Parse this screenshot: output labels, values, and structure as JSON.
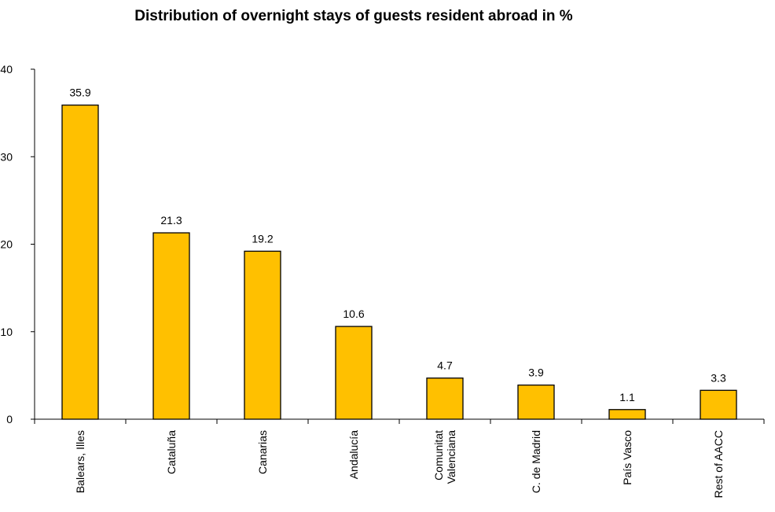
{
  "chart_data": {
    "type": "bar",
    "title": "Distribution of overnight stays of guests resident abroad in %",
    "categories": [
      "Balears, Illes",
      "Cataluña",
      "Canarias",
      "Andalucía",
      "Comunitat Valenciana",
      "C. de Madrid",
      "País Vasco",
      "Rest of AACC"
    ],
    "category_lines": [
      [
        "Balears, Illes"
      ],
      [
        "Cataluña"
      ],
      [
        "Canarias"
      ],
      [
        "Andalucía"
      ],
      [
        "Comunitat",
        "Valenciana"
      ],
      [
        "C. de Madrid"
      ],
      [
        "País Vasco"
      ],
      [
        "Rest of AACC"
      ]
    ],
    "values": [
      35.9,
      21.3,
      19.2,
      10.6,
      4.7,
      3.9,
      1.1,
      3.3
    ],
    "data_labels": [
      "35.9",
      "21.3",
      "19.2",
      "10.6",
      "4.7",
      "3.9",
      "1.1",
      "3.3"
    ],
    "ylim": [
      0,
      40
    ],
    "yticks": [
      0,
      10,
      20,
      30,
      40
    ],
    "xlabel": "",
    "ylabel": "",
    "grid": false,
    "legend": "none",
    "colors": {
      "bar_fill": "#FFC000",
      "bar_stroke": "#000000",
      "axis": "#000000"
    }
  }
}
